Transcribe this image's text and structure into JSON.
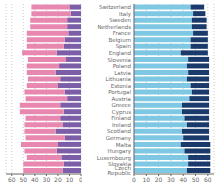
{
  "chart_data": [
    {
      "type": "bar",
      "orientation": "horizontal",
      "stacked": true,
      "grid": true,
      "tick_labels": "x",
      "categories": [
        "Czech Republic",
        "Slovakia",
        "Luxembourg",
        "Hungary",
        "Malta",
        "Germany",
        "Scotland",
        "Ireland",
        "Finland",
        "Cyprus",
        "Greece",
        "Austria",
        "Portugal",
        "Estonia",
        "Lithuania",
        "Latvia",
        "Poland",
        "Slovenia",
        "England",
        "Spain",
        "Belgium",
        "France",
        "Netherlands",
        "Sweden",
        "Italy",
        "Switzerland"
      ],
      "xlim": [
        65,
        0
      ],
      "xticks": [
        60,
        50,
        40,
        30,
        20,
        10,
        0
      ],
      "series": [
        {
          "color": "#7b5ea7",
          "values": [
            16,
            15,
            17,
            21,
            20,
            14,
            22,
            16,
            18,
            15,
            18,
            12,
            14,
            20,
            18,
            22,
            19,
            13,
            21,
            15,
            14,
            11,
            12,
            12,
            9,
            10
          ]
        },
        {
          "color": "#e887b0",
          "values": [
            34,
            35,
            30,
            28,
            32,
            34,
            27,
            33,
            30,
            38,
            35,
            36,
            35,
            27,
            28,
            25,
            28,
            33,
            30,
            32,
            33,
            36,
            32,
            32,
            34,
            33
          ]
        }
      ]
    },
    {
      "type": "bar",
      "orientation": "horizontal",
      "stacked": true,
      "grid": true,
      "categories": [
        "Czech Republic",
        "Slovakia",
        "Luxembourg",
        "Hungary",
        "Malta",
        "Germany",
        "Scotland",
        "Ireland",
        "Finland",
        "Cyprus",
        "Greece",
        "Austria",
        "Portugal",
        "Estonia",
        "Lithuania",
        "Latvia",
        "Poland",
        "Slovenia",
        "England",
        "Spain",
        "Belgium",
        "France",
        "Netherlands",
        "Sweden",
        "Italy",
        "Switzerland"
      ],
      "xlim": [
        0,
        65
      ],
      "xticks": [
        0,
        10,
        20,
        30,
        40,
        50,
        60
      ],
      "series": [
        {
          "color": "#7ec8e3",
          "values": [
            43,
            44,
            44,
            41,
            38,
            40,
            39,
            43,
            41,
            39,
            39,
            45,
            47,
            46,
            43,
            44,
            43,
            44,
            38,
            46,
            46,
            48,
            47,
            47,
            48,
            46
          ]
        },
        {
          "color": "#1a3a6b",
          "values": [
            19,
            18,
            18,
            21,
            24,
            21,
            22,
            18,
            20,
            22,
            22,
            16,
            14,
            15,
            18,
            17,
            18,
            17,
            22,
            14,
            14,
            12,
            12,
            12,
            10,
            11
          ]
        }
      ]
    }
  ]
}
